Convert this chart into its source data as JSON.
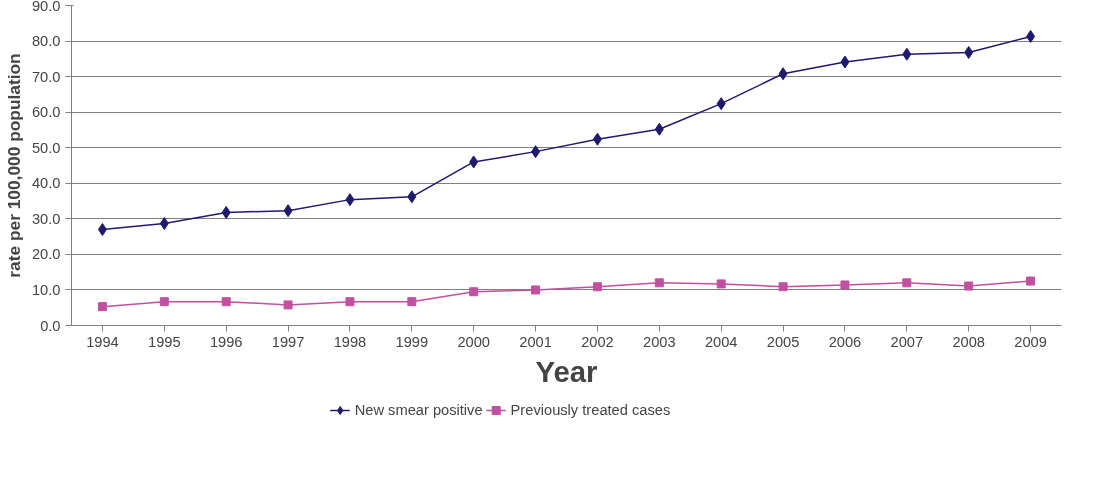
{
  "chart_data": {
    "type": "line",
    "xlabel": "Year",
    "ylabel": "rate per 100,000 population",
    "categories": [
      "1994",
      "1995",
      "1996",
      "1997",
      "1998",
      "1999",
      "2000",
      "2001",
      "2002",
      "2003",
      "2004",
      "2005",
      "2006",
      "2007",
      "2008",
      "2009"
    ],
    "series": [
      {
        "name": "New smear positive",
        "color": "#1f1a6e",
        "marker": "diamond",
        "values": [
          27.0,
          28.7,
          31.8,
          32.3,
          35.4,
          36.2,
          46.0,
          48.9,
          52.4,
          55.2,
          62.4,
          70.8,
          74.1,
          76.3,
          76.8,
          81.3
        ]
      },
      {
        "name": "Previously treated cases",
        "color": "#c050a0",
        "marker": "square",
        "values": [
          5.3,
          6.7,
          6.7,
          5.8,
          6.7,
          6.7,
          9.5,
          10.0,
          10.9,
          12.0,
          11.7,
          10.9,
          11.4,
          12.0,
          11.1,
          12.5
        ]
      }
    ],
    "ylim": [
      0,
      90
    ],
    "yticks": [
      {
        "value": 0,
        "label": "0.0"
      },
      {
        "value": 10,
        "label": "10.0"
      },
      {
        "value": 20,
        "label": "20.0"
      },
      {
        "value": 30,
        "label": "30.0"
      },
      {
        "value": 40,
        "label": "40.0"
      },
      {
        "value": 50,
        "label": "50.0"
      },
      {
        "value": 60,
        "label": "60.0"
      },
      {
        "value": 70,
        "label": "70.0"
      },
      {
        "value": 80,
        "label": "80.0"
      },
      {
        "value": 90,
        "label": "90.0"
      }
    ],
    "grid": "y",
    "legend": "bottom",
    "line_style": "solid"
  }
}
